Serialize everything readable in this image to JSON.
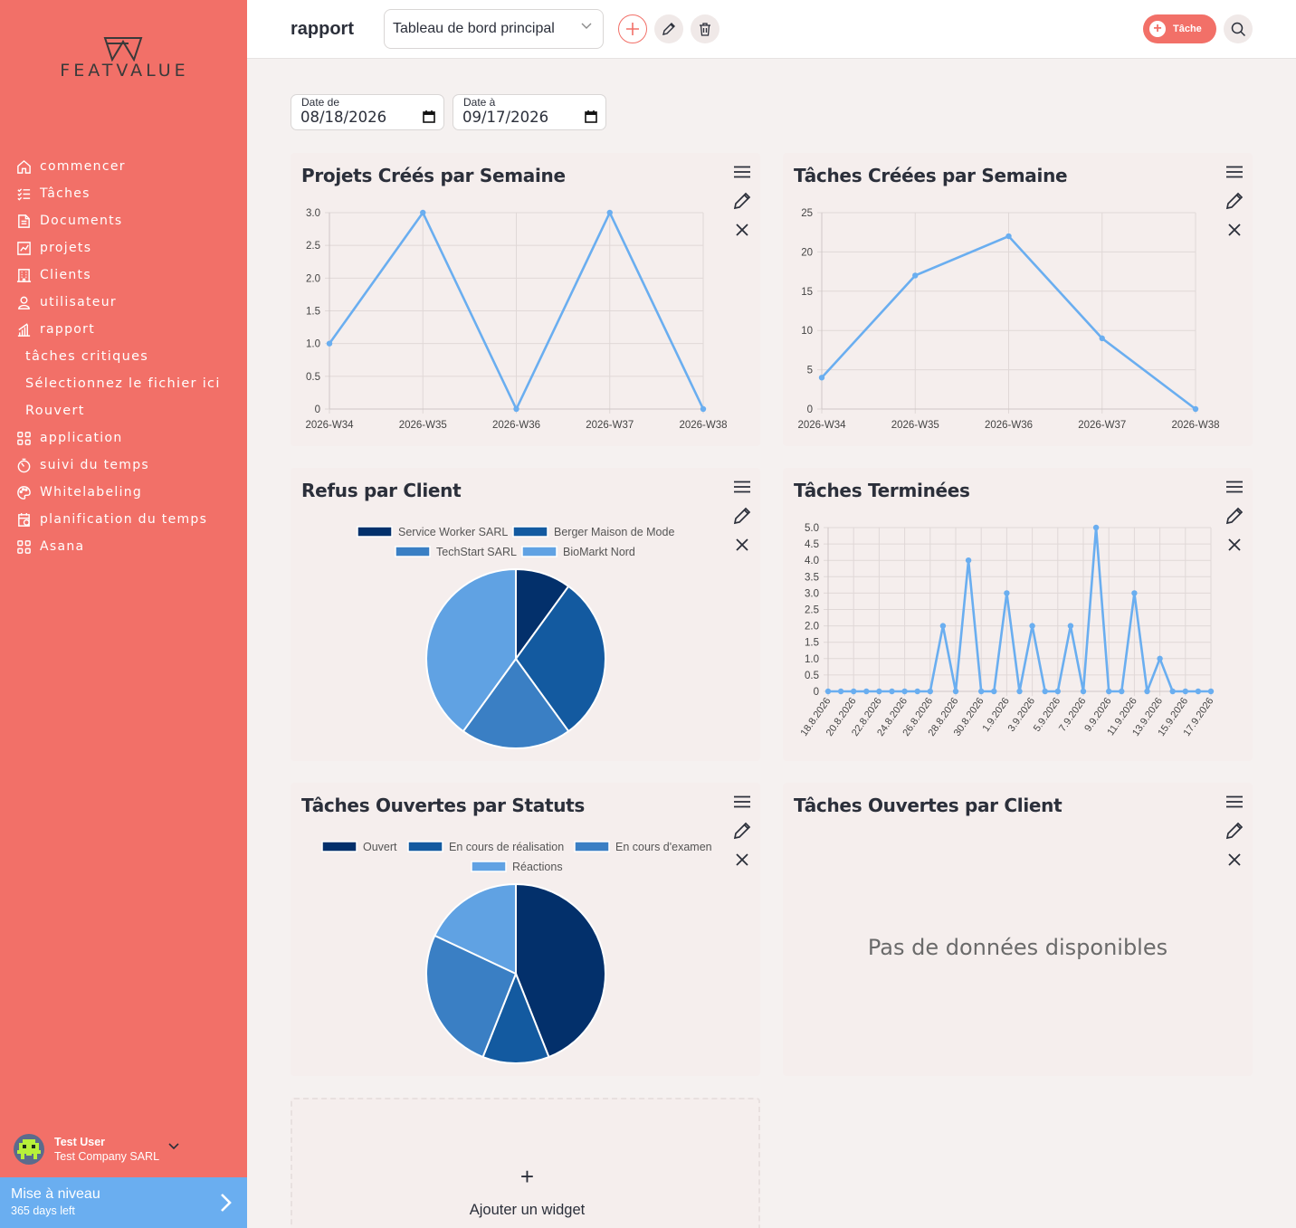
{
  "brand": {
    "name": "FEATVALUE"
  },
  "nav": [
    {
      "label": "commencer",
      "icon": "home-icon"
    },
    {
      "label": "Tâches",
      "icon": "checklist-icon"
    },
    {
      "label": "Documents",
      "icon": "document-icon"
    },
    {
      "label": "projets",
      "icon": "chart-board-icon"
    },
    {
      "label": "Clients",
      "icon": "building-icon"
    },
    {
      "label": "utilisateur",
      "icon": "user-icon"
    },
    {
      "label": "rapport",
      "icon": "bar-chart-icon"
    },
    {
      "label": "tâches critiques",
      "sub": true
    },
    {
      "label": "Sélectionnez le fichier ici",
      "sub": true
    },
    {
      "label": "Rouvert",
      "sub": true
    },
    {
      "label": "application",
      "icon": "apps-icon"
    },
    {
      "label": "suivi du temps",
      "icon": "timer-icon"
    },
    {
      "label": "Whitelabeling",
      "icon": "palette-icon"
    },
    {
      "label": "planification du temps",
      "icon": "calendar-clipboard-icon"
    },
    {
      "label": "Asana",
      "icon": "apps-icon"
    }
  ],
  "user": {
    "name": "Test User",
    "company": "Test Company SARL"
  },
  "upgrade": {
    "title": "Mise à niveau",
    "subtitle": "365 days left"
  },
  "header": {
    "title": "rapport",
    "dashboard_select": "Tableau de bord principal",
    "task_button": "Tâche"
  },
  "filters": {
    "from_label": "Date de",
    "from_value": "08/18/2026",
    "to_label": "Date à",
    "to_value": "09/17/2026"
  },
  "colors": {
    "sidebar": "#f27068",
    "line": "#6aaef0",
    "pie": [
      "#03306b",
      "#135aa0",
      "#3a7fc4",
      "#60a2e3"
    ]
  },
  "widgets": {
    "projects_week": {
      "title": "Projets Créés par Semaine"
    },
    "tasks_week": {
      "title": "Tâches Créées par Semaine"
    },
    "refusals": {
      "title": "Refus par Client"
    },
    "completed": {
      "title": "Tâches Terminées"
    },
    "open_status": {
      "title": "Tâches Ouvertes par Statuts"
    },
    "open_client": {
      "title": "Tâches Ouvertes par Client",
      "empty": "Pas de données disponibles"
    }
  },
  "add_widget": {
    "plus": "+",
    "label": "Ajouter un widget"
  },
  "chart_data": [
    {
      "type": "line",
      "title": "Projets Créés par Semaine",
      "categories": [
        "2026-W34",
        "2026-W35",
        "2026-W36",
        "2026-W37",
        "2026-W38"
      ],
      "values": [
        1,
        3,
        0,
        3,
        0
      ],
      "ylim": [
        0,
        3
      ],
      "yticks": [
        "0",
        "0.5",
        "1.0",
        "1.5",
        "2.0",
        "2.5",
        "3.0"
      ],
      "grid": true
    },
    {
      "type": "line",
      "title": "Tâches Créées par Semaine",
      "categories": [
        "2026-W34",
        "2026-W35",
        "2026-W36",
        "2026-W37",
        "2026-W38"
      ],
      "values": [
        4,
        17,
        22,
        9,
        0
      ],
      "ylim": [
        0,
        25
      ],
      "yticks": [
        "0",
        "5",
        "10",
        "15",
        "20",
        "25"
      ],
      "grid": true
    },
    {
      "type": "pie",
      "title": "Refus par Client",
      "legend": [
        "Service Worker SARL",
        "Berger Maison de Mode",
        "TechStart SARL",
        "BioMarkt Nord"
      ],
      "values": [
        10,
        30,
        20,
        40
      ],
      "legend_position": "top"
    },
    {
      "type": "line",
      "title": "Tâches Terminées",
      "x": [
        "18.8.2026",
        "19.8.2026",
        "20.8.2026",
        "21.8.2026",
        "22.8.2026",
        "23.8.2026",
        "24.8.2026",
        "25.8.2026",
        "26.8.2026",
        "27.8.2026",
        "28.8.2026",
        "29.8.2026",
        "30.8.2026",
        "31.8.2026",
        "1.9.2026",
        "2.9.2026",
        "3.9.2026",
        "4.9.2026",
        "5.9.2026",
        "6.9.2026",
        "7.9.2026",
        "8.9.2026",
        "9.9.2026",
        "10.9.2026",
        "11.9.2026",
        "12.9.2026",
        "13.9.2026",
        "14.9.2026",
        "15.9.2026",
        "16.9.2026",
        "17.9.2026"
      ],
      "xtick_labels": [
        "18.8.2026",
        "20.8.2026",
        "22.8.2026",
        "24.8.2026",
        "26.8.2026",
        "28.8.2026",
        "30.8.2026",
        "1.9.2026",
        "3.9.2026",
        "5.9.2026",
        "7.9.2026",
        "9.9.2026",
        "11.9.2026",
        "13.9.2026",
        "15.9.2026",
        "17.9.2026"
      ],
      "values": [
        0,
        0,
        0,
        0,
        0,
        0,
        0,
        0,
        0,
        2,
        0,
        4,
        0,
        0,
        3,
        0,
        2,
        0,
        0,
        2,
        0,
        5,
        0,
        0,
        3,
        0,
        1,
        0,
        0,
        0,
        0
      ],
      "ylim": [
        0,
        5
      ],
      "yticks": [
        "0",
        "0.5",
        "1.0",
        "1.5",
        "2.0",
        "2.5",
        "3.0",
        "3.5",
        "4.0",
        "4.5",
        "5.0"
      ],
      "grid": true
    },
    {
      "type": "pie",
      "title": "Tâches Ouvertes par Statuts",
      "legend": [
        "Ouvert",
        "En cours de réalisation",
        "En cours d'examen",
        "Réactions"
      ],
      "values": [
        44,
        12,
        26,
        18
      ],
      "legend_position": "top"
    }
  ]
}
